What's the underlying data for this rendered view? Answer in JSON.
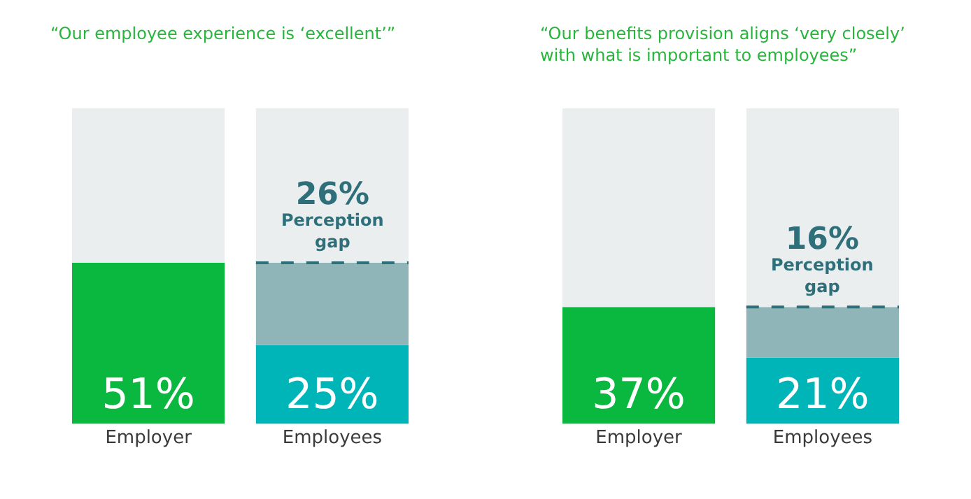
{
  "chart_data": [
    {
      "type": "bar",
      "stacked": true,
      "title": "“Our employee experience is ‘excellent’”",
      "categories": [
        "Employer",
        "Employees"
      ],
      "ylim": [
        0,
        100
      ],
      "tick_labels": "x",
      "series": [
        {
          "colors": [
            "#0bb83f",
            "#00b5b8"
          ],
          "values": [
            51,
            25
          ],
          "value_labels": [
            "51%",
            "25%"
          ]
        },
        {
          "color": "#8fb5b9",
          "values": [
            null,
            26
          ],
          "line_style": "dashed"
        },
        {
          "color": "#ebeeef",
          "values": [
            49,
            49
          ]
        }
      ],
      "annotations": [
        {
          "text": "26%\nPerception gap",
          "x": "Employees",
          "y": 51
        }
      ]
    },
    {
      "type": "bar",
      "stacked": true,
      "title": "“Our benefits provision aligns ‘very closely’\nwith what is important to employees”",
      "categories": [
        "Employer",
        "Employees"
      ],
      "ylim": [
        0,
        100
      ],
      "tick_labels": "x",
      "series": [
        {
          "colors": [
            "#0bb83f",
            "#00b5b8"
          ],
          "values": [
            37,
            21
          ],
          "value_labels": [
            "37%",
            "21%"
          ]
        },
        {
          "color": "#8fb5b9",
          "values": [
            null,
            16
          ],
          "line_style": "dashed"
        },
        {
          "color": "#ebeeef",
          "values": [
            63,
            63
          ]
        }
      ],
      "annotations": [
        {
          "text": "16%\nPerception gap",
          "x": "Employees",
          "y": 37
        }
      ]
    }
  ]
}
